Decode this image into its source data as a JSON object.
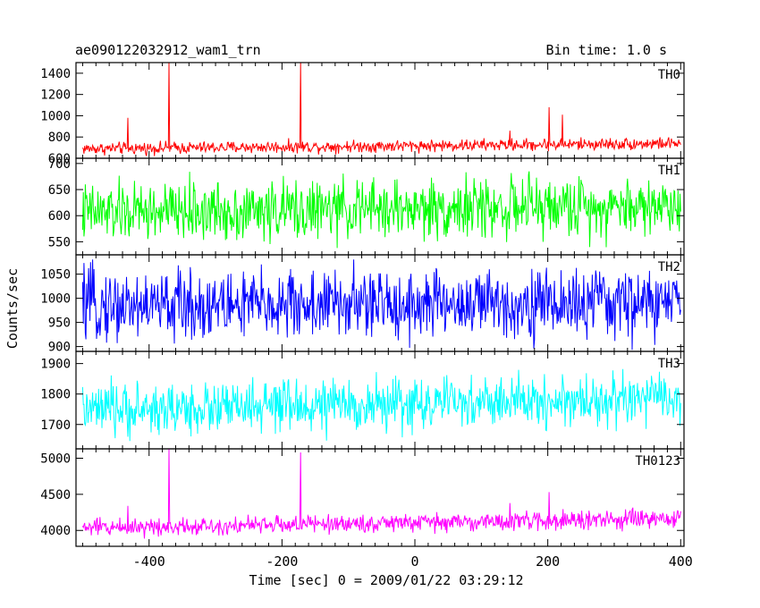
{
  "header": {
    "title": "ae090122032912_wam1_trn",
    "bin_time": "Bin time: 1.0 s"
  },
  "chart_data": {
    "type": "line",
    "title": "ae090122032912_wam1_trn",
    "subtitle": "Bin time: 1.0 s",
    "xlabel": "Time [sec] 0 = 2009/01/22 03:29:12",
    "ylabel": "Counts/sec",
    "xlim": [
      -510,
      405
    ],
    "x_ticks": [
      -400,
      -200,
      0,
      200,
      400
    ],
    "x_range": [
      -500,
      400
    ],
    "grid": false,
    "legend": "none",
    "panels": [
      {
        "name": "TH0",
        "color": "#ff0000",
        "ylim": [
          600,
          1500
        ],
        "y_ticks": [
          600,
          800,
          1000,
          1200,
          1400
        ],
        "baseline_start": 690,
        "baseline_end": 740,
        "noise": 28,
        "spikes": [
          {
            "x": -432,
            "y": 980
          },
          {
            "x": -370,
            "y": 1500
          },
          {
            "x": -172,
            "y": 1500
          },
          {
            "x": 143,
            "y": 860
          },
          {
            "x": 202,
            "y": 1080
          },
          {
            "x": 222,
            "y": 1010
          }
        ]
      },
      {
        "name": "TH1",
        "color": "#00ff00",
        "ylim": [
          525,
          710
        ],
        "y_ticks": [
          550,
          600,
          650,
          700
        ],
        "baseline_start": 605,
        "baseline_end": 620,
        "noise": 28,
        "spikes": []
      },
      {
        "name": "TH2",
        "color": "#0000ff",
        "ylim": [
          890,
          1090
        ],
        "y_ticks": [
          900,
          950,
          1000,
          1050
        ],
        "baseline_start": 985,
        "baseline_end": 990,
        "noise": 36,
        "spikes": []
      },
      {
        "name": "TH3",
        "color": "#00ffff",
        "ylim": [
          1620,
          1940
        ],
        "y_ticks": [
          1700,
          1800,
          1900
        ],
        "baseline_start": 1745,
        "baseline_end": 1785,
        "noise": 42,
        "spikes": []
      },
      {
        "name": "TH0123",
        "color": "#ff00ff",
        "ylim": [
          3780,
          5130
        ],
        "y_ticks": [
          4000,
          4500,
          5000
        ],
        "baseline_start": 4040,
        "baseline_end": 4160,
        "noise": 62,
        "spikes": [
          {
            "x": -432,
            "y": 4340
          },
          {
            "x": -370,
            "y": 5130
          },
          {
            "x": -172,
            "y": 5080
          },
          {
            "x": 143,
            "y": 4380
          },
          {
            "x": 202,
            "y": 4530
          }
        ]
      }
    ]
  }
}
